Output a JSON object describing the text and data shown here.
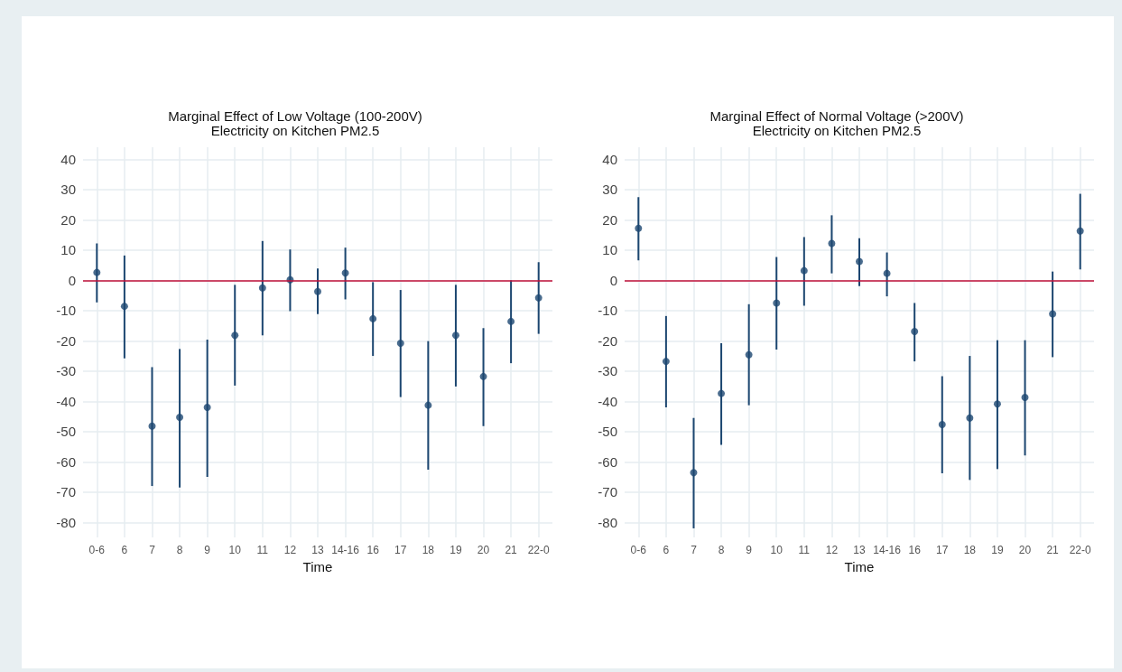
{
  "chart_data": [
    {
      "type": "scatter",
      "title": "Marginal Effect of Low Voltage (100-200V)\nElectricity on Kitchen PM2.5",
      "xlabel": "Time",
      "categories": [
        "0-6",
        "6",
        "7",
        "8",
        "9",
        "10",
        "11",
        "12",
        "13",
        "14-16",
        "16",
        "17",
        "18",
        "19",
        "20",
        "21",
        "22-0"
      ],
      "series": [
        {
          "color": "#1c4670",
          "values": [
            2.6,
            -8.6,
            -48.2,
            -45.3,
            -42,
            -18.2,
            -2.5,
            0.2,
            -3.7,
            2.4,
            -12.7,
            -20.8,
            -41.3,
            -18.2,
            -31.8,
            -13.6,
            -5.8
          ],
          "errors": [
            [
              -7.3,
              12.2
            ],
            [
              -25.8,
              8.2
            ],
            [
              -68,
              -28.7
            ],
            [
              -68.5,
              -22.7
            ],
            [
              -65,
              -19.6
            ],
            [
              -34.8,
              -1.5
            ],
            [
              -18.2,
              13
            ],
            [
              -10.2,
              10.2
            ],
            [
              -11.2,
              3.9
            ],
            [
              -6.3,
              10.8
            ],
            [
              -25,
              -0.6
            ],
            [
              -38.6,
              -3.2
            ],
            [
              -62.6,
              -20.1
            ],
            [
              -35.1,
              -1.5
            ],
            [
              -48.2,
              -15.8
            ],
            [
              -27.4,
              0
            ],
            [
              -17.7,
              6
            ]
          ]
        }
      ],
      "ylim": [
        -85,
        44
      ],
      "yticks": [
        -80,
        -70,
        -60,
        -50,
        -40,
        -30,
        -20,
        -10,
        0,
        10,
        20,
        30,
        40
      ],
      "ref_lines": [
        {
          "axis": "y",
          "value": 0,
          "color": "#c0103a"
        }
      ],
      "grid": true,
      "marker": "circle"
    },
    {
      "type": "scatter",
      "title": "Marginal Effect of Normal Voltage (>200V)\nElectricity on Kitchen PM2.5",
      "xlabel": "Time",
      "categories": [
        "0-6",
        "6",
        "7",
        "8",
        "9",
        "10",
        "11",
        "12",
        "13",
        "14-16",
        "16",
        "17",
        "18",
        "19",
        "20",
        "21",
        "22-0"
      ],
      "series": [
        {
          "color": "#1c4670",
          "values": [
            17.2,
            -26.8,
            -63.6,
            -37.4,
            -24.6,
            -7.5,
            3.2,
            12.2,
            6.2,
            2.3,
            -16.9,
            -47.7,
            -45.5,
            -40.9,
            -38.7,
            -11.1,
            16.3
          ],
          "errors": [
            [
              6.6,
              27.5
            ],
            [
              -42,
              -11.8
            ],
            [
              -82,
              -45.5
            ],
            [
              -54.4,
              -20.8
            ],
            [
              -41.3,
              -7.9
            ],
            [
              -22.9,
              7.7
            ],
            [
              -8.4,
              14.3
            ],
            [
              2.3,
              21.5
            ],
            [
              -1.9,
              13.9
            ],
            [
              -5.3,
              9.2
            ],
            [
              -26.8,
              -7.5
            ],
            [
              -63.8,
              -31.7
            ],
            [
              -66,
              -25
            ],
            [
              -62.4,
              -19.8
            ],
            [
              -57.9,
              -19.8
            ],
            [
              -25.4,
              2.9
            ],
            [
              3.6,
              28.6
            ]
          ]
        }
      ],
      "ylim": [
        -85,
        44
      ],
      "yticks": [
        -80,
        -70,
        -60,
        -50,
        -40,
        -30,
        -20,
        -10,
        0,
        10,
        20,
        30,
        40
      ],
      "ref_lines": [
        {
          "axis": "y",
          "value": 0,
          "color": "#c0103a"
        }
      ],
      "grid": true,
      "marker": "circle"
    }
  ]
}
